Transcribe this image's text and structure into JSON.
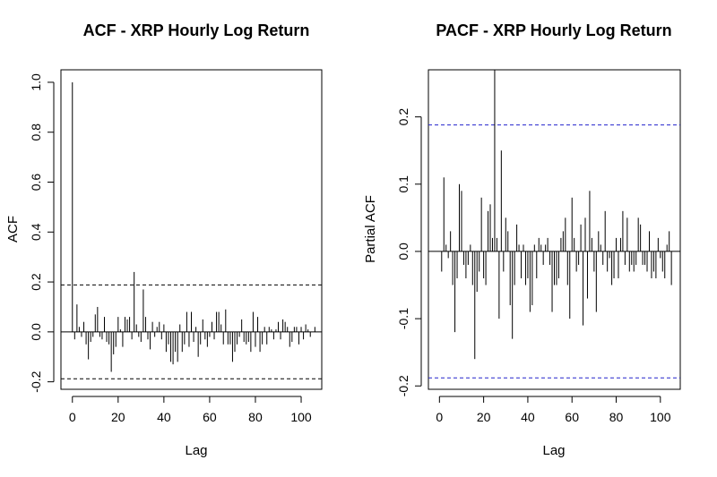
{
  "chart_data": [
    {
      "type": "bar",
      "title": "ACF - XRP Hourly Log Return",
      "xlabel": "Lag",
      "ylabel": "ACF",
      "xlim": [
        -5,
        109
      ],
      "ylim": [
        -0.23,
        1.05
      ],
      "x_ticks": [
        0,
        20,
        40,
        60,
        80,
        100
      ],
      "y_ticks": [
        -0.2,
        0.0,
        0.2,
        0.4,
        0.6,
        0.8,
        1.0
      ],
      "x_tick_labels": [
        "0",
        "20",
        "40",
        "60",
        "80",
        "100"
      ],
      "y_tick_labels": [
        "-0.2",
        "0.0",
        "0.2",
        "0.4",
        "0.6",
        "0.8",
        "1.0"
      ],
      "confidence_bounds": [
        0.188,
        -0.188
      ],
      "bound_color": "#000000",
      "lags": [
        0,
        1,
        2,
        3,
        4,
        5,
        6,
        7,
        8,
        9,
        10,
        11,
        12,
        13,
        14,
        15,
        16,
        17,
        18,
        19,
        20,
        21,
        22,
        23,
        24,
        25,
        26,
        27,
        28,
        29,
        30,
        31,
        32,
        33,
        34,
        35,
        36,
        37,
        38,
        39,
        40,
        41,
        42,
        43,
        44,
        45,
        46,
        47,
        48,
        49,
        50,
        51,
        52,
        53,
        54,
        55,
        56,
        57,
        58,
        59,
        60,
        61,
        62,
        63,
        64,
        65,
        66,
        67,
        68,
        69,
        70,
        71,
        72,
        73,
        74,
        75,
        76,
        77,
        78,
        79,
        80,
        81,
        82,
        83,
        84,
        85,
        86,
        87,
        88,
        89,
        90,
        91,
        92,
        93,
        94,
        95,
        96,
        97,
        98,
        99,
        100,
        101,
        102,
        103,
        104,
        105,
        106
      ],
      "values": [
        1.0,
        -0.03,
        0.11,
        0.02,
        -0.02,
        0.04,
        -0.05,
        -0.11,
        -0.04,
        -0.02,
        0.07,
        0.1,
        -0.02,
        -0.03,
        0.06,
        -0.04,
        -0.05,
        -0.16,
        -0.09,
        -0.06,
        0.06,
        0.01,
        -0.06,
        0.06,
        0.05,
        0.06,
        -0.03,
        0.24,
        0.03,
        -0.02,
        -0.04,
        0.17,
        0.06,
        -0.03,
        -0.07,
        0.04,
        -0.02,
        0.02,
        0.04,
        -0.03,
        0.03,
        -0.08,
        -0.05,
        -0.12,
        -0.13,
        -0.08,
        -0.12,
        0.03,
        -0.08,
        -0.05,
        0.08,
        -0.06,
        0.08,
        -0.04,
        0.02,
        -0.1,
        -0.05,
        0.05,
        -0.03,
        -0.06,
        -0.02,
        0.04,
        -0.03,
        0.08,
        0.08,
        0.03,
        -0.05,
        0.09,
        -0.05,
        -0.05,
        -0.12,
        -0.08,
        -0.05,
        -0.02,
        0.05,
        -0.04,
        -0.05,
        -0.04,
        -0.08,
        0.08,
        -0.06,
        0.06,
        -0.08,
        -0.05,
        0.02,
        -0.05,
        0.02,
        0.01,
        -0.03,
        0.01,
        0.04,
        -0.03,
        0.05,
        0.04,
        0.02,
        -0.06,
        -0.04,
        0.02,
        0.02,
        -0.05,
        0.02,
        -0.03,
        0.03,
        0.01,
        -0.02,
        0.0,
        0.02
      ]
    },
    {
      "type": "bar",
      "title": "PACF - XRP Hourly Log Return",
      "xlabel": "Lag",
      "ylabel": "Partial ACF",
      "xlim": [
        -5,
        109
      ],
      "ylim": [
        -0.205,
        0.27
      ],
      "x_ticks": [
        0,
        20,
        40,
        60,
        80,
        100
      ],
      "y_ticks": [
        -0.2,
        -0.1,
        0.0,
        0.1,
        0.2
      ],
      "x_tick_labels": [
        "0",
        "20",
        "40",
        "60",
        "80",
        "100"
      ],
      "y_tick_labels": [
        "-0.2",
        "-0.1",
        "0.0",
        "0.1",
        "0.2"
      ],
      "confidence_bounds": [
        0.188,
        -0.188
      ],
      "bound_color": "#2222cc",
      "lags": [
        1,
        2,
        3,
        4,
        5,
        6,
        7,
        8,
        9,
        10,
        11,
        12,
        13,
        14,
        15,
        16,
        17,
        18,
        19,
        20,
        21,
        22,
        23,
        24,
        25,
        26,
        27,
        28,
        29,
        30,
        31,
        32,
        33,
        34,
        35,
        36,
        37,
        38,
        39,
        40,
        41,
        42,
        43,
        44,
        45,
        46,
        47,
        48,
        49,
        50,
        51,
        52,
        53,
        54,
        55,
        56,
        57,
        58,
        59,
        60,
        61,
        62,
        63,
        64,
        65,
        66,
        67,
        68,
        69,
        70,
        71,
        72,
        73,
        74,
        75,
        76,
        77,
        78,
        79,
        80,
        81,
        82,
        83,
        84,
        85,
        86,
        87,
        88,
        89,
        90,
        91,
        92,
        93,
        94,
        95,
        96,
        97,
        98,
        99,
        100,
        101,
        102,
        103,
        104,
        105,
        106
      ],
      "values": [
        -0.03,
        0.11,
        0.01,
        -0.01,
        0.03,
        -0.05,
        -0.12,
        -0.04,
        0.1,
        0.09,
        -0.02,
        -0.04,
        -0.02,
        0.01,
        -0.05,
        -0.16,
        -0.06,
        -0.03,
        0.08,
        -0.04,
        -0.05,
        0.06,
        0.07,
        0.02,
        0.27,
        0.02,
        -0.1,
        0.15,
        -0.03,
        0.05,
        0.03,
        -0.08,
        -0.13,
        -0.05,
        0.04,
        0.01,
        -0.04,
        0.01,
        -0.05,
        -0.04,
        -0.09,
        -0.08,
        0.01,
        -0.04,
        0.02,
        0.01,
        -0.02,
        0.01,
        0.02,
        -0.02,
        -0.09,
        -0.05,
        -0.05,
        -0.04,
        0.02,
        0.03,
        0.05,
        -0.05,
        -0.1,
        0.08,
        0.02,
        -0.03,
        -0.02,
        0.04,
        -0.11,
        0.05,
        -0.07,
        0.09,
        0.02,
        -0.03,
        -0.09,
        0.03,
        0.01,
        -0.02,
        0.06,
        -0.03,
        -0.01,
        -0.05,
        -0.04,
        0.02,
        -0.04,
        0.02,
        0.06,
        -0.02,
        0.05,
        -0.03,
        -0.02,
        -0.03,
        -0.02,
        0.05,
        0.04,
        -0.02,
        -0.02,
        -0.03,
        0.03,
        -0.04,
        -0.03,
        -0.04,
        0.02,
        -0.01,
        -0.03,
        -0.04,
        0.01,
        0.03,
        -0.05,
        0.0
      ]
    }
  ]
}
